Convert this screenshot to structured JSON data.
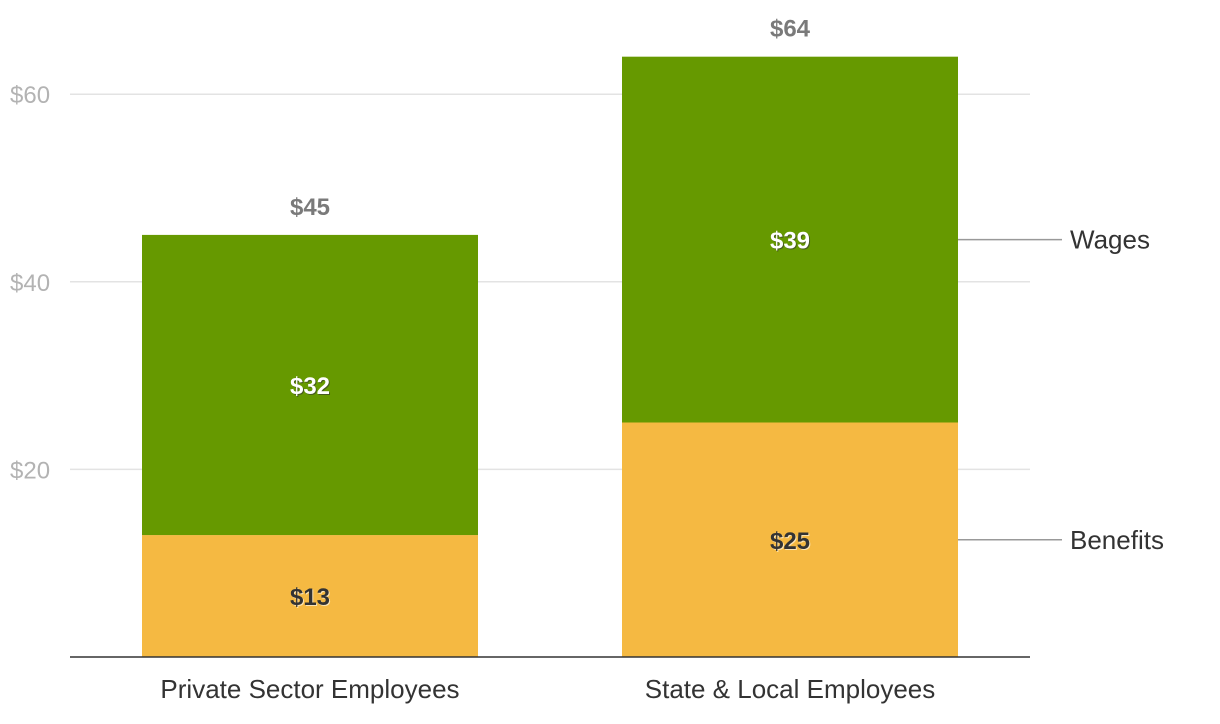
{
  "chart_data": {
    "type": "bar",
    "stacked": true,
    "categories": [
      "Private Sector Employees",
      "State & Local Employees"
    ],
    "series": [
      {
        "name": "Benefits",
        "values": [
          13,
          25
        ],
        "labels": [
          "$13",
          "$25"
        ],
        "color": "#f5b942",
        "label_color": "#333333"
      },
      {
        "name": "Wages",
        "values": [
          32,
          39
        ],
        "labels": [
          "$32",
          "$39"
        ],
        "color": "#669900",
        "label_color": "#ffffff"
      }
    ],
    "totals": [
      45,
      64
    ],
    "total_labels": [
      "$45",
      "$64"
    ],
    "ylim": [
      0,
      64
    ],
    "yticks": [
      20,
      40,
      60
    ],
    "ytick_labels": [
      "$20",
      "$40",
      "$60"
    ],
    "grid": true,
    "legend": "right, inline labels",
    "xlabel": "",
    "ylabel": "",
    "title": ""
  }
}
